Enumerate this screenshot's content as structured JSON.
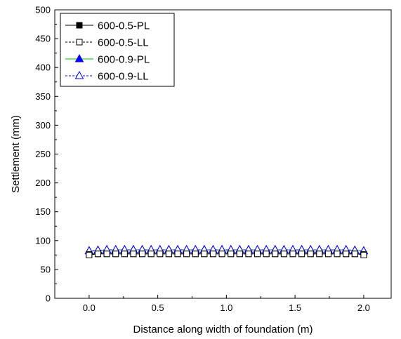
{
  "chart_data": {
    "type": "line",
    "xlabel": "Distance along width of foundation (m)",
    "ylabel": "Settlement (mm)",
    "xlim": [
      -0.25,
      2.2
    ],
    "ylim": [
      0,
      500
    ],
    "xticks": [
      0.0,
      0.5,
      1.0,
      1.5,
      2.0
    ],
    "xtick_labels": [
      "0.0",
      "0.5",
      "1.0",
      "1.5",
      "2.0"
    ],
    "yticks": [
      0,
      50,
      100,
      150,
      200,
      250,
      300,
      350,
      400,
      450,
      500
    ],
    "ytick_labels": [
      "0",
      "50",
      "100",
      "150",
      "200",
      "250",
      "300",
      "350",
      "400",
      "450",
      "500"
    ],
    "grid": false,
    "legend_position": "top-left",
    "x": [
      0.0,
      0.0645,
      0.129,
      0.1935,
      0.258,
      0.3226,
      0.3871,
      0.4516,
      0.5161,
      0.5806,
      0.6452,
      0.7097,
      0.7742,
      0.8387,
      0.9032,
      0.9677,
      1.0323,
      1.0968,
      1.1613,
      1.2258,
      1.2903,
      1.3548,
      1.4194,
      1.4839,
      1.5484,
      1.6129,
      1.6774,
      1.7419,
      1.8065,
      1.871,
      1.9355,
      2.0
    ],
    "series": [
      {
        "name": "600-0.5-PL",
        "marker": "square-filled",
        "line_style": "solid",
        "color": "#000000",
        "values": [
          76,
          77,
          77,
          77,
          77,
          77,
          77,
          77,
          77,
          77,
          77,
          77,
          77,
          77,
          77,
          77,
          77,
          77,
          77,
          77,
          77,
          77,
          77,
          77,
          77,
          77,
          77,
          77,
          77,
          77,
          77,
          76
        ]
      },
      {
        "name": "600-0.5-LL",
        "marker": "square-open",
        "line_style": "dashed",
        "color": "#000000",
        "values": [
          75,
          77,
          77,
          77,
          77,
          77,
          77,
          77,
          77,
          77,
          77,
          77,
          77,
          77,
          77,
          77,
          77,
          77,
          77,
          77,
          77,
          77,
          77,
          77,
          77,
          77,
          77,
          77,
          77,
          77,
          77,
          75
        ]
      },
      {
        "name": "600-0.9-PL",
        "marker": "triangle-filled",
        "line_style": "solid",
        "color": "#00c000",
        "marker_color": "#0000ff",
        "values": [
          82,
          83,
          84,
          84,
          84,
          84,
          84,
          84,
          84,
          84,
          84,
          84,
          84,
          84,
          84,
          84,
          84,
          84,
          84,
          84,
          84,
          84,
          84,
          84,
          84,
          84,
          84,
          84,
          84,
          84,
          83,
          82
        ]
      },
      {
        "name": "600-0.9-LL",
        "marker": "triangle-open",
        "line_style": "dashed",
        "color": "#0000ff",
        "values": [
          82,
          83,
          84,
          84,
          84,
          84,
          84,
          84,
          84,
          84,
          84,
          84,
          84,
          84,
          84,
          84,
          84,
          84,
          84,
          84,
          84,
          84,
          84,
          84,
          84,
          84,
          84,
          84,
          84,
          84,
          83,
          82
        ]
      }
    ]
  }
}
